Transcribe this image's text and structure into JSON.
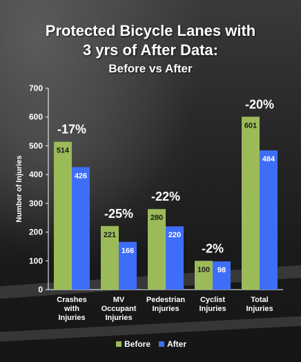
{
  "title_line1": "Protected Bicycle Lanes with",
  "title_line2": "3 yrs of After Data:",
  "subtitle": "Before vs After",
  "colors": {
    "before": "#9bbb59",
    "after": "#3e6df7",
    "text": "#ffffff",
    "axis": "#ffffff"
  },
  "chart_data": {
    "type": "bar",
    "title": "Protected Bicycle Lanes with 3 yrs of After Data: Before vs After",
    "ylabel": "Number of Injuries",
    "xlabel": "",
    "ylim": [
      0,
      700
    ],
    "yticks": [
      0,
      100,
      200,
      300,
      400,
      500,
      600,
      700
    ],
    "grid": false,
    "legend_position": "bottom",
    "categories": [
      [
        "Crashes",
        "with",
        "Injuries"
      ],
      [
        "MV",
        "Occupant",
        "Injuries"
      ],
      [
        "Pedestrian",
        "Injuries"
      ],
      [
        "Cyclist",
        "Injuries"
      ],
      [
        "Total",
        "Injuries"
      ]
    ],
    "series": [
      {
        "name": "Before",
        "values": [
          514,
          221,
          280,
          100,
          601
        ]
      },
      {
        "name": "After",
        "values": [
          426,
          166,
          220,
          98,
          484
        ]
      }
    ],
    "annotations": [
      "-17%",
      "-25%",
      "-22%",
      "-2%",
      "-20%"
    ]
  }
}
